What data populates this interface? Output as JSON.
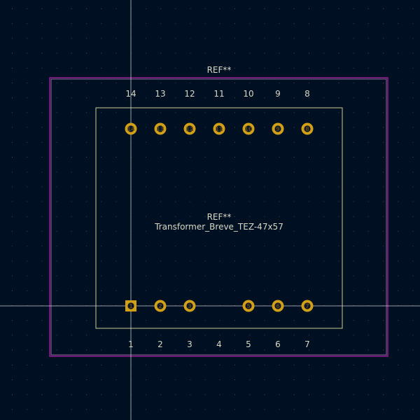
{
  "footprint": {
    "reference_top": "REF**",
    "reference_center": "REF**",
    "value": "Transformer_Breve_TEZ-47x57"
  },
  "pads_top": [
    {
      "number": "14",
      "label": "14"
    },
    {
      "number": "13",
      "label": "13"
    },
    {
      "number": "12",
      "label": "12"
    },
    {
      "number": "11",
      "label": "11"
    },
    {
      "number": "10",
      "label": "10"
    },
    {
      "number": "9",
      "label": "9"
    },
    {
      "number": "8",
      "label": "8"
    }
  ],
  "pads_bottom": [
    {
      "number": "1",
      "label": "1",
      "shape": "square",
      "present": true
    },
    {
      "number": "2",
      "label": "2",
      "shape": "round",
      "present": true
    },
    {
      "number": "3",
      "label": "3",
      "shape": "round",
      "present": true
    },
    {
      "number": "4",
      "label": "4",
      "shape": "round",
      "present": false
    },
    {
      "number": "5",
      "label": "5",
      "shape": "round",
      "present": true
    },
    {
      "number": "6",
      "label": "6",
      "shape": "round",
      "present": true
    },
    {
      "number": "7",
      "label": "7",
      "shape": "round",
      "present": true
    }
  ],
  "colors": {
    "background": "#001023",
    "grid_dot": "#3a4a5e",
    "courtyard": "#ff26e2",
    "fab_outline": "#c8c890",
    "pad": "#d2a015",
    "pad_hole": "#0c1430",
    "text": "#d8d8c6",
    "crosshair": "#e8e8e8"
  }
}
